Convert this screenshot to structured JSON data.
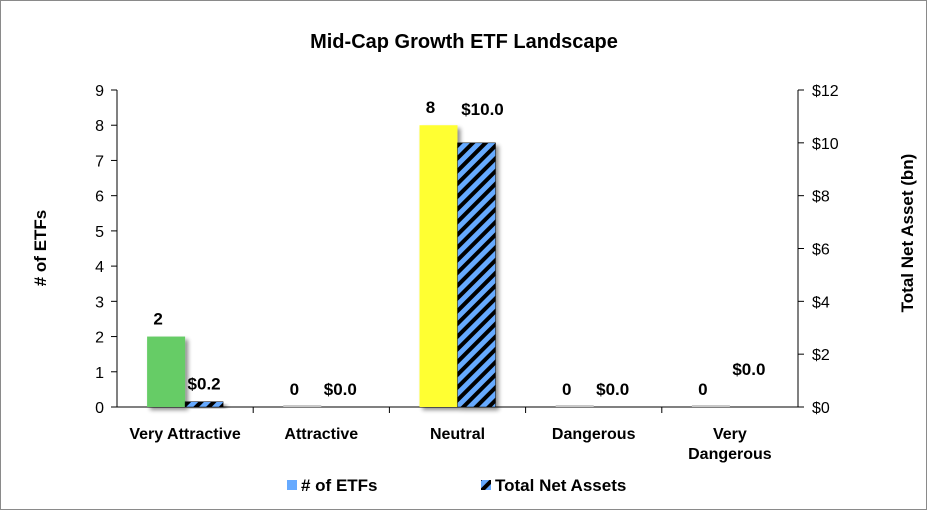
{
  "chart_data": {
    "type": "bar",
    "title": "Mid-Cap Growth ETF Landscape",
    "categories": [
      "Very Attractive",
      "Attractive",
      "Neutral",
      "Dangerous",
      "Very Dangerous"
    ],
    "category_lines": [
      [
        "Very Attractive"
      ],
      [
        "Attractive"
      ],
      [
        "Neutral"
      ],
      [
        "Dangerous"
      ],
      [
        "Very",
        "Dangerous"
      ]
    ],
    "series": [
      {
        "name": "# of ETFs",
        "axis": "left",
        "values": [
          2,
          0,
          8,
          0,
          0
        ],
        "labels": [
          "2",
          "0",
          "8",
          "0",
          "0"
        ],
        "colors": [
          "#66cc66",
          "#c8c8c8",
          "#ffff33",
          "#c8c8c8",
          "#c8c8c8"
        ]
      },
      {
        "name": "Total Net Assets",
        "axis": "right",
        "values": [
          0.2,
          0.0,
          10.0,
          0.0,
          0.0
        ],
        "labels": [
          "$0.2",
          "$0.0",
          "$10.0",
          "$0.0",
          "$0.0"
        ],
        "colors": [
          "#66aaff",
          "#66aaff",
          "#66aaff",
          "#66aaff",
          "#66aaff"
        ],
        "pattern": "diagonal-stripes"
      }
    ],
    "ylabel": "# of ETFs",
    "y2label": "Total Net Asset (bn)",
    "ylim": [
      0,
      9
    ],
    "y2lim": [
      0,
      12
    ],
    "yticks": [
      "0",
      "1",
      "2",
      "3",
      "4",
      "5",
      "6",
      "7",
      "8",
      "9"
    ],
    "y2ticks": [
      "$0",
      "$2",
      "$4",
      "$6",
      "$8",
      "$10",
      "$12"
    ],
    "legend": {
      "position": "bottom",
      "entries": [
        "# of ETFs",
        "Total Net Assets"
      ]
    },
    "grid": false
  }
}
